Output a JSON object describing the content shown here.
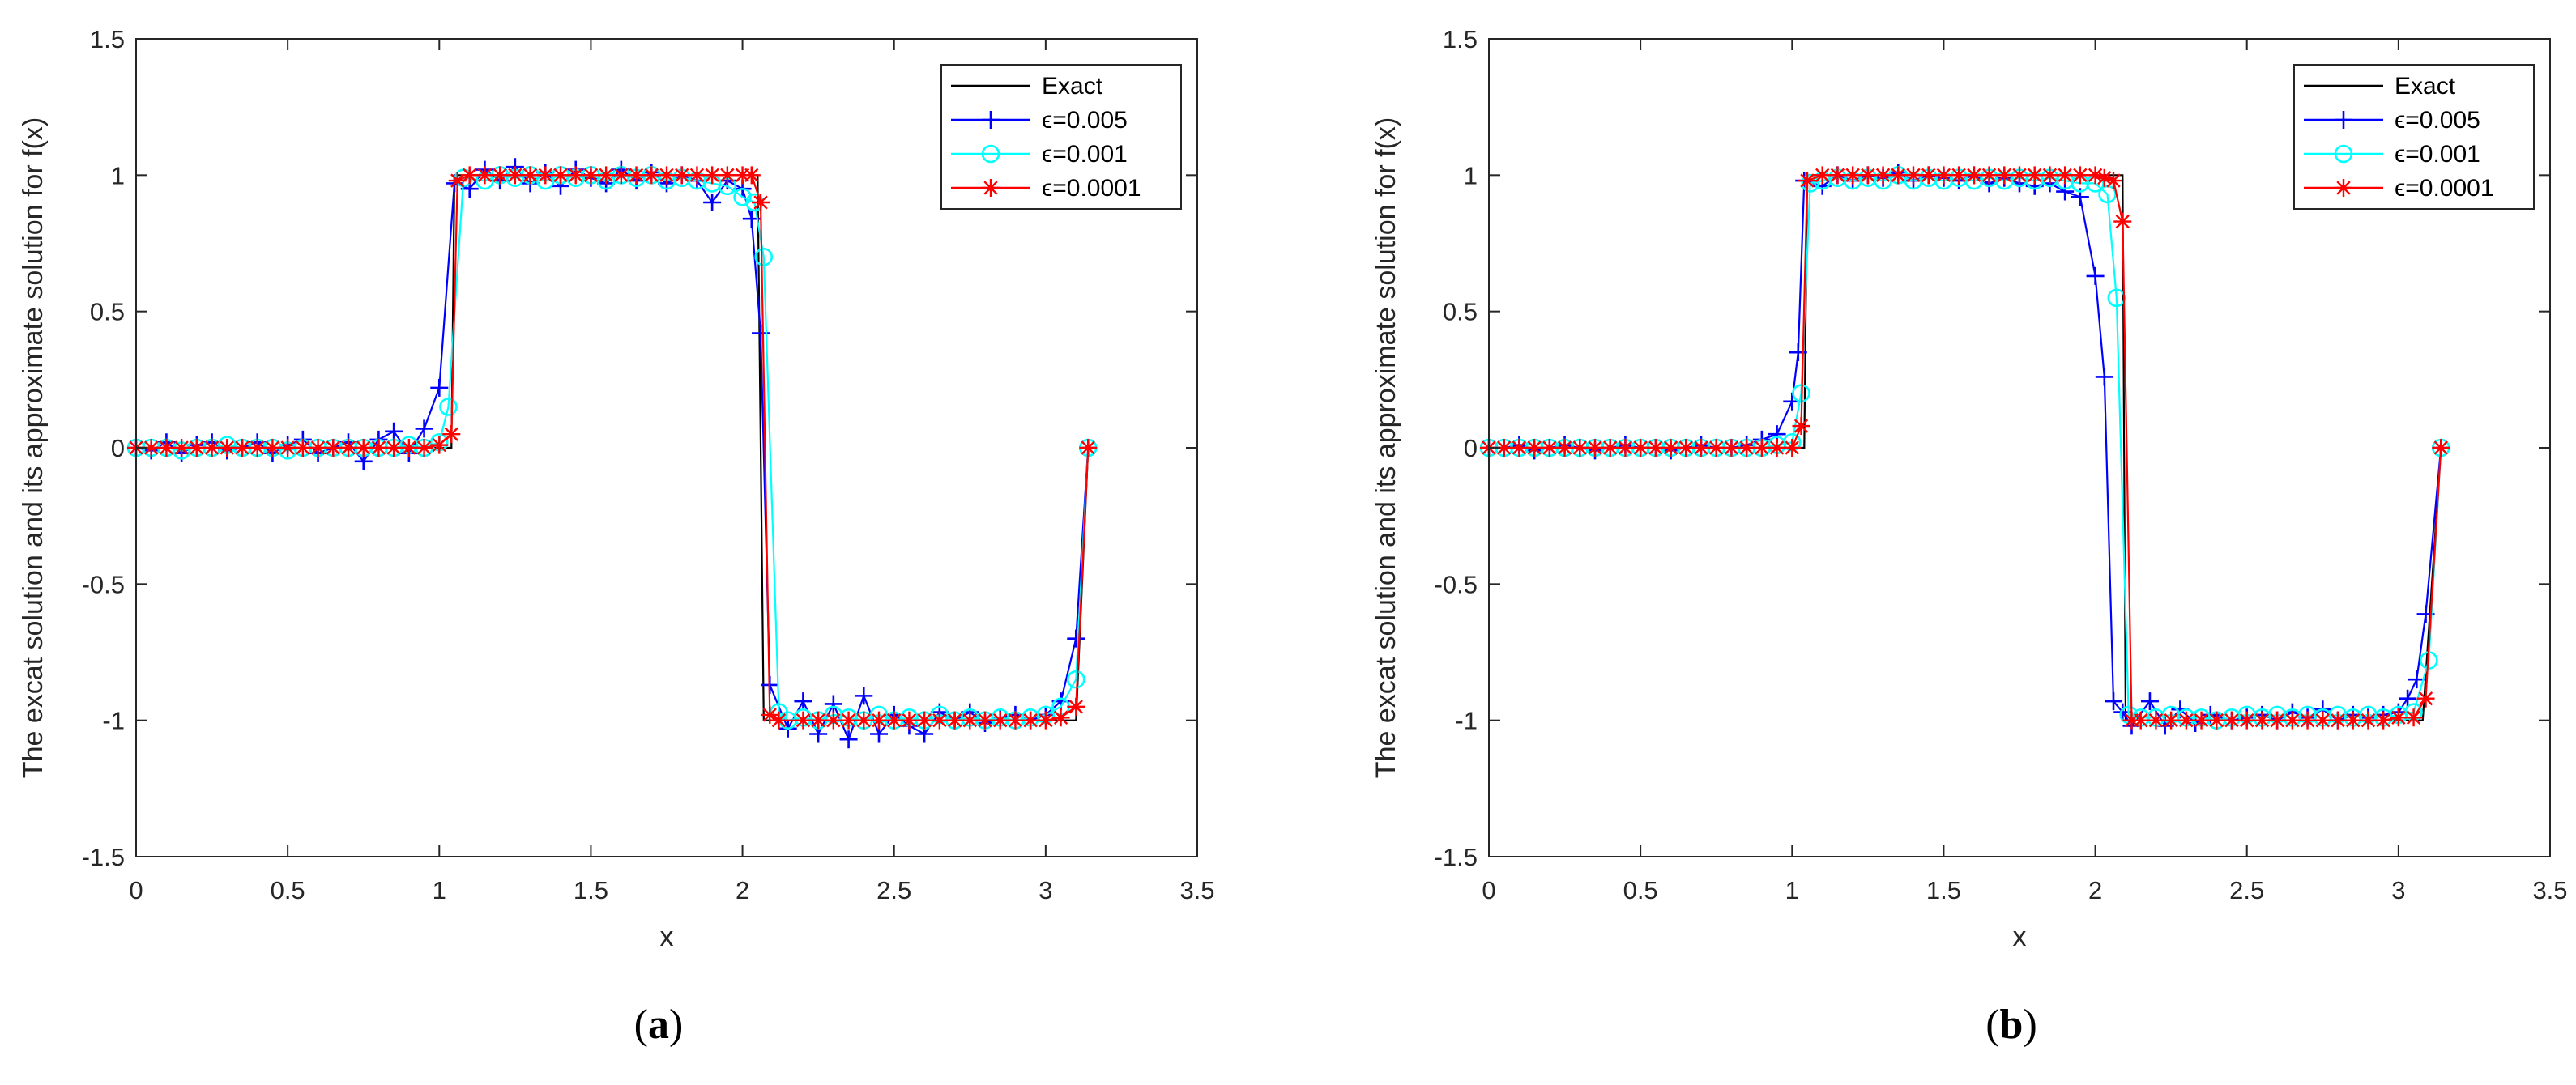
{
  "chart_data": [
    {
      "type": "line",
      "panel": "a",
      "caption_letter": "a",
      "caption_open": "(",
      "caption_close": ")",
      "xlabel": "x",
      "ylabel": "The excat solution and its approximate solution for f(x)",
      "xlim": [
        0,
        3.5
      ],
      "ylim": [
        -1.5,
        1.5
      ],
      "xticks": [
        "0",
        "0.5",
        "1",
        "1.5",
        "2",
        "2.5",
        "3",
        "3.5"
      ],
      "yticks": [
        "1.5",
        "1",
        "0.5",
        "0",
        "-0.5",
        "-1",
        "-1.5"
      ],
      "legend_position": "top-right",
      "series": [
        {
          "name": "Exact",
          "color": "#000000",
          "marker": "none",
          "x": [
            0,
            1.04,
            1.05,
            2.05,
            2.07,
            3.1,
            3.14
          ],
          "y": [
            0,
            0,
            1,
            1,
            -1,
            -1,
            0
          ]
        },
        {
          "name": "ϵ=0.005",
          "color": "#0000ff",
          "marker": "plus",
          "x": [
            0,
            0.05,
            0.1,
            0.15,
            0.2,
            0.25,
            0.3,
            0.35,
            0.4,
            0.45,
            0.5,
            0.55,
            0.6,
            0.65,
            0.7,
            0.75,
            0.8,
            0.85,
            0.9,
            0.95,
            1.0,
            1.05,
            1.1,
            1.15,
            1.2,
            1.25,
            1.3,
            1.35,
            1.4,
            1.45,
            1.5,
            1.55,
            1.6,
            1.65,
            1.7,
            1.75,
            1.8,
            1.85,
            1.9,
            1.95,
            2.0,
            2.03,
            2.06,
            2.09,
            2.15,
            2.2,
            2.25,
            2.3,
            2.35,
            2.4,
            2.45,
            2.5,
            2.55,
            2.6,
            2.65,
            2.7,
            2.75,
            2.8,
            2.85,
            2.9,
            2.95,
            3.0,
            3.05,
            3.1,
            3.14
          ],
          "y": [
            0.0,
            -0.01,
            0.02,
            -0.02,
            0.01,
            0.02,
            -0.01,
            0.0,
            0.02,
            -0.02,
            0.01,
            0.03,
            -0.02,
            0.0,
            0.02,
            -0.05,
            0.03,
            0.06,
            -0.02,
            0.07,
            0.22,
            0.97,
            0.95,
            1.02,
            0.98,
            1.03,
            0.97,
            1.01,
            0.96,
            1.02,
            0.99,
            0.97,
            1.02,
            0.98,
            1.01,
            0.97,
            1.0,
            0.98,
            0.9,
            0.98,
            0.95,
            0.84,
            0.42,
            -0.87,
            -1.03,
            -0.93,
            -1.05,
            -0.94,
            -1.07,
            -0.91,
            -1.05,
            -0.98,
            -1.02,
            -1.05,
            -0.97,
            -1.0,
            -0.97,
            -1.01,
            -0.99,
            -0.98,
            -1.0,
            -0.98,
            -0.93,
            -0.7,
            0.0
          ]
        },
        {
          "name": "ϵ=0.001",
          "color": "#00ffff",
          "marker": "circle",
          "x": [
            0,
            0.05,
            0.1,
            0.15,
            0.2,
            0.25,
            0.3,
            0.35,
            0.4,
            0.45,
            0.5,
            0.55,
            0.6,
            0.65,
            0.7,
            0.75,
            0.8,
            0.85,
            0.9,
            0.95,
            1.0,
            1.03,
            1.08,
            1.15,
            1.2,
            1.25,
            1.3,
            1.35,
            1.4,
            1.45,
            1.5,
            1.55,
            1.6,
            1.65,
            1.7,
            1.75,
            1.8,
            1.85,
            1.9,
            1.95,
            2.0,
            2.04,
            2.07,
            2.12,
            2.15,
            2.2,
            2.25,
            2.3,
            2.35,
            2.4,
            2.45,
            2.5,
            2.55,
            2.6,
            2.65,
            2.7,
            2.75,
            2.8,
            2.85,
            2.9,
            2.95,
            3.0,
            3.05,
            3.1,
            3.14
          ],
          "y": [
            0.0,
            0.0,
            0.0,
            -0.01,
            0.0,
            0.0,
            0.01,
            0.0,
            0.0,
            0.0,
            -0.01,
            0.0,
            0.0,
            0.0,
            0.0,
            0.0,
            0.0,
            0.0,
            0.01,
            0.0,
            0.02,
            0.15,
            0.99,
            0.98,
            1.0,
            0.99,
            1.0,
            0.98,
            1.0,
            0.99,
            1.0,
            0.98,
            1.0,
            0.99,
            1.0,
            0.98,
            0.99,
            0.98,
            0.97,
            0.96,
            0.92,
            0.9,
            0.7,
            -0.97,
            -1.0,
            -0.99,
            -1.0,
            -0.98,
            -0.99,
            -1.0,
            -0.98,
            -1.0,
            -0.99,
            -1.0,
            -0.98,
            -1.0,
            -0.99,
            -1.0,
            -0.99,
            -1.0,
            -0.99,
            -0.98,
            -0.95,
            -0.85,
            0.0
          ]
        },
        {
          "name": "ϵ=0.0001",
          "color": "#ff0000",
          "marker": "star",
          "x": [
            0,
            0.05,
            0.1,
            0.15,
            0.2,
            0.25,
            0.3,
            0.35,
            0.4,
            0.45,
            0.5,
            0.55,
            0.6,
            0.65,
            0.7,
            0.75,
            0.8,
            0.85,
            0.9,
            0.95,
            1.0,
            1.04,
            1.06,
            1.1,
            1.15,
            1.2,
            1.25,
            1.3,
            1.35,
            1.4,
            1.45,
            1.5,
            1.55,
            1.6,
            1.65,
            1.7,
            1.75,
            1.8,
            1.85,
            1.9,
            1.95,
            2.0,
            2.03,
            2.06,
            2.09,
            2.12,
            2.2,
            2.25,
            2.3,
            2.35,
            2.4,
            2.45,
            2.5,
            2.55,
            2.6,
            2.65,
            2.7,
            2.75,
            2.8,
            2.85,
            2.9,
            2.95,
            3.0,
            3.05,
            3.1,
            3.14
          ],
          "y": [
            0.0,
            0.0,
            0.0,
            0.0,
            0.0,
            0.0,
            0.0,
            0.0,
            0.0,
            0.0,
            0.0,
            0.0,
            0.0,
            0.0,
            0.0,
            0.0,
            0.0,
            0.0,
            0.0,
            0.0,
            0.01,
            0.05,
            0.98,
            1.0,
            1.0,
            1.0,
            1.0,
            1.0,
            1.0,
            1.0,
            1.0,
            1.0,
            1.0,
            1.0,
            1.0,
            1.0,
            1.0,
            1.0,
            1.0,
            1.0,
            1.0,
            1.0,
            1.0,
            0.9,
            -0.98,
            -1.0,
            -1.0,
            -1.0,
            -1.0,
            -1.0,
            -1.0,
            -1.0,
            -1.0,
            -1.0,
            -1.0,
            -1.0,
            -1.0,
            -1.0,
            -1.0,
            -1.0,
            -1.0,
            -1.0,
            -1.0,
            -0.99,
            -0.95,
            0.0
          ]
        }
      ]
    },
    {
      "type": "line",
      "panel": "b",
      "caption_letter": "b",
      "caption_open": "(",
      "caption_close": ")",
      "xlabel": "x",
      "ylabel": "The excat solution and its approximate solution for f(x)",
      "xlim": [
        0,
        3.5
      ],
      "ylim": [
        -1.5,
        1.5
      ],
      "xticks": [
        "0",
        "0.5",
        "1",
        "1.5",
        "2",
        "2.5",
        "3",
        "3.5"
      ],
      "yticks": [
        "1.5",
        "1",
        "0.5",
        "0",
        "-0.5",
        "-1",
        "-1.5"
      ],
      "legend_position": "top-right",
      "series": [
        {
          "name": "Exact",
          "color": "#000000",
          "marker": "none",
          "x": [
            0,
            1.04,
            1.05,
            2.09,
            2.1,
            3.08,
            3.14
          ],
          "y": [
            0,
            0,
            1,
            1,
            -1,
            -1,
            0
          ]
        },
        {
          "name": "ϵ=0.005",
          "color": "#0000ff",
          "marker": "plus",
          "x": [
            0,
            0.05,
            0.1,
            0.15,
            0.2,
            0.25,
            0.3,
            0.35,
            0.4,
            0.45,
            0.5,
            0.55,
            0.6,
            0.65,
            0.7,
            0.75,
            0.8,
            0.85,
            0.9,
            0.95,
            1.0,
            1.02,
            1.04,
            1.1,
            1.15,
            1.2,
            1.25,
            1.3,
            1.35,
            1.4,
            1.45,
            1.5,
            1.55,
            1.6,
            1.65,
            1.7,
            1.75,
            1.8,
            1.85,
            1.9,
            1.95,
            2.0,
            2.03,
            2.06,
            2.09,
            2.12,
            2.18,
            2.23,
            2.28,
            2.33,
            2.38,
            2.45,
            2.5,
            2.55,
            2.6,
            2.65,
            2.7,
            2.75,
            2.8,
            2.85,
            2.9,
            2.95,
            3.0,
            3.03,
            3.06,
            3.09,
            3.14
          ],
          "y": [
            0.0,
            0.0,
            0.01,
            -0.01,
            0.0,
            0.01,
            0.0,
            -0.01,
            0.0,
            0.01,
            0.0,
            0.0,
            -0.01,
            0.0,
            0.01,
            0.0,
            0.0,
            0.01,
            0.03,
            0.05,
            0.17,
            0.35,
            0.98,
            0.96,
            1.0,
            0.98,
            1.0,
            0.99,
            1.01,
            0.98,
            1.0,
            0.99,
            0.98,
            1.0,
            0.97,
            0.99,
            0.97,
            0.96,
            0.97,
            0.94,
            0.92,
            0.63,
            0.26,
            -0.93,
            -0.97,
            -1.02,
            -0.93,
            -1.02,
            -0.96,
            -1.01,
            -0.98,
            -1.0,
            -0.99,
            -0.98,
            -1.0,
            -0.97,
            -0.99,
            -0.96,
            -1.0,
            -0.98,
            -0.99,
            -0.98,
            -0.97,
            -0.92,
            -0.85,
            -0.61,
            0.0
          ]
        },
        {
          "name": "ϵ=0.001",
          "color": "#00ffff",
          "marker": "circle",
          "x": [
            0,
            0.05,
            0.1,
            0.15,
            0.2,
            0.25,
            0.3,
            0.35,
            0.4,
            0.45,
            0.5,
            0.55,
            0.6,
            0.65,
            0.7,
            0.75,
            0.8,
            0.85,
            0.9,
            0.95,
            1.0,
            1.03,
            1.06,
            1.1,
            1.15,
            1.2,
            1.25,
            1.3,
            1.35,
            1.4,
            1.45,
            1.5,
            1.55,
            1.6,
            1.65,
            1.7,
            1.75,
            1.8,
            1.85,
            1.9,
            1.95,
            2.0,
            2.04,
            2.07,
            2.11,
            2.15,
            2.2,
            2.25,
            2.3,
            2.35,
            2.4,
            2.45,
            2.5,
            2.55,
            2.6,
            2.65,
            2.7,
            2.75,
            2.8,
            2.85,
            2.9,
            2.95,
            3.0,
            3.05,
            3.1,
            3.14
          ],
          "y": [
            0.0,
            0.0,
            0.0,
            0.0,
            0.0,
            0.0,
            0.0,
            0.0,
            0.0,
            0.0,
            0.0,
            0.0,
            0.0,
            0.0,
            0.0,
            0.0,
            0.0,
            0.0,
            0.0,
            0.01,
            0.02,
            0.2,
            0.97,
            0.98,
            0.99,
            0.98,
            0.99,
            0.98,
            1.0,
            0.98,
            0.99,
            0.98,
            0.99,
            0.98,
            0.99,
            0.98,
            0.99,
            0.98,
            0.99,
            0.98,
            0.97,
            0.97,
            0.93,
            0.55,
            -0.98,
            -0.99,
            -0.99,
            -0.98,
            -0.99,
            -0.99,
            -1.0,
            -0.99,
            -0.98,
            -0.99,
            -0.98,
            -0.99,
            -0.98,
            -0.99,
            -0.98,
            -0.99,
            -0.98,
            -0.99,
            -0.98,
            -0.97,
            -0.78,
            0.0
          ]
        },
        {
          "name": "ϵ=0.0001",
          "color": "#ff0000",
          "marker": "star",
          "x": [
            0,
            0.05,
            0.1,
            0.15,
            0.2,
            0.25,
            0.3,
            0.35,
            0.4,
            0.45,
            0.5,
            0.55,
            0.6,
            0.65,
            0.7,
            0.75,
            0.8,
            0.85,
            0.9,
            0.95,
            1.0,
            1.03,
            1.05,
            1.1,
            1.15,
            1.2,
            1.25,
            1.3,
            1.35,
            1.4,
            1.45,
            1.5,
            1.55,
            1.6,
            1.65,
            1.7,
            1.75,
            1.8,
            1.85,
            1.9,
            1.95,
            2.0,
            2.03,
            2.06,
            2.09,
            2.12,
            2.15,
            2.2,
            2.25,
            2.3,
            2.35,
            2.4,
            2.45,
            2.5,
            2.55,
            2.6,
            2.65,
            2.7,
            2.75,
            2.8,
            2.85,
            2.9,
            2.95,
            3.0,
            3.05,
            3.09,
            3.14
          ],
          "y": [
            0.0,
            0.0,
            0.0,
            0.0,
            0.0,
            0.0,
            0.0,
            0.0,
            0.0,
            0.0,
            0.0,
            0.0,
            0.0,
            0.0,
            0.0,
            0.0,
            0.0,
            0.0,
            0.0,
            0.0,
            0.0,
            0.08,
            0.98,
            1.0,
            1.0,
            1.0,
            1.0,
            1.0,
            1.0,
            1.0,
            1.0,
            1.0,
            1.0,
            1.0,
            1.0,
            1.0,
            1.0,
            1.0,
            1.0,
            1.0,
            1.0,
            1.0,
            0.99,
            0.98,
            0.83,
            -1.0,
            -1.0,
            -1.0,
            -1.0,
            -1.0,
            -1.0,
            -1.0,
            -1.0,
            -1.0,
            -1.0,
            -1.0,
            -1.0,
            -1.0,
            -1.0,
            -1.0,
            -1.0,
            -1.0,
            -1.0,
            -0.99,
            -0.99,
            -0.92,
            0.0
          ]
        }
      ]
    }
  ]
}
